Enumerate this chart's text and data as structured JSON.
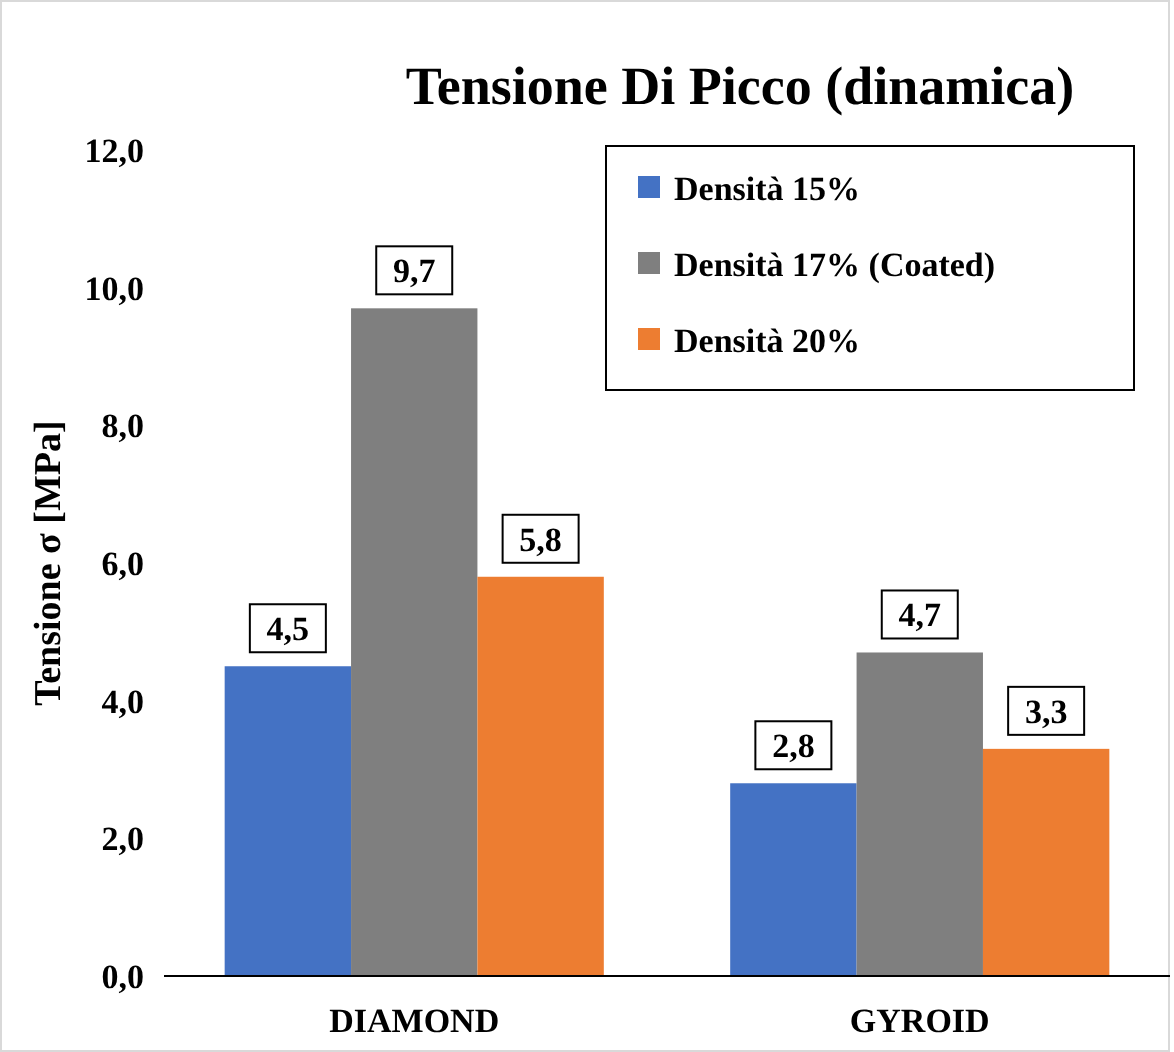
{
  "chart_data": {
    "type": "bar",
    "title": "Tensione Di Picco (dinamica)",
    "ylabel": "Tensione σ [MPa]",
    "categories": [
      "DIAMOND",
      "GYROID"
    ],
    "series": [
      {
        "name": "Densità 15%",
        "color": "#4472c4",
        "values": [
          4.5,
          2.8
        ],
        "value_labels": [
          "4,5",
          "2,8"
        ]
      },
      {
        "name": "Densità 17% (Coated)",
        "color": "#7f7f7f",
        "values": [
          9.7,
          4.7
        ],
        "value_labels": [
          "9,7",
          "4,7"
        ]
      },
      {
        "name": "Densità 20%",
        "color": "#ed7d31",
        "values": [
          5.8,
          3.3
        ],
        "value_labels": [
          "5,8",
          "3,3"
        ]
      }
    ],
    "ylim": [
      0,
      12
    ],
    "yticks": [
      {
        "value": 0,
        "label": "0,0"
      },
      {
        "value": 2,
        "label": "2,0"
      },
      {
        "value": 4,
        "label": "4,0"
      },
      {
        "value": 6,
        "label": "6,0"
      },
      {
        "value": 8,
        "label": "8,0"
      },
      {
        "value": 10,
        "label": "10,0"
      },
      {
        "value": 12,
        "label": "12,0"
      }
    ],
    "grid": false,
    "legend": "top right"
  }
}
